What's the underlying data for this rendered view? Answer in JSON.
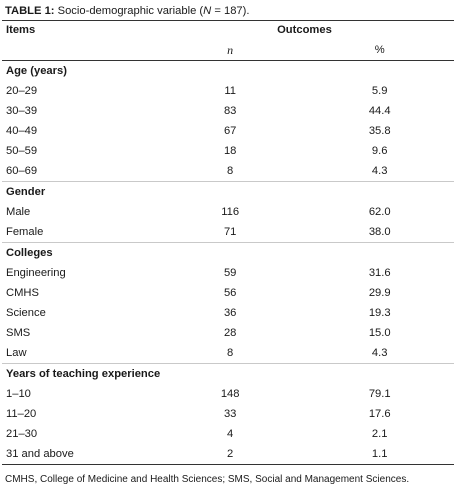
{
  "caption": {
    "label": "TABLE 1:",
    "text_before": " Socio-demographic variable (",
    "n_symbol": "N",
    "text_after": " = 187)."
  },
  "header": {
    "items": "Items",
    "outcomes": "Outcomes",
    "n": "n",
    "percent": "%"
  },
  "sections": [
    {
      "title": "Age (years)",
      "rows": [
        {
          "item": "20–29",
          "n": "11",
          "pct": "5.9"
        },
        {
          "item": "30–39",
          "n": "83",
          "pct": "44.4"
        },
        {
          "item": "40–49",
          "n": "67",
          "pct": "35.8"
        },
        {
          "item": "50–59",
          "n": "18",
          "pct": "9.6"
        },
        {
          "item": "60–69",
          "n": "8",
          "pct": "4.3"
        }
      ]
    },
    {
      "title": "Gender",
      "rows": [
        {
          "item": "Male",
          "n": "116",
          "pct": "62.0"
        },
        {
          "item": "Female",
          "n": "71",
          "pct": "38.0"
        }
      ]
    },
    {
      "title": "Colleges",
      "rows": [
        {
          "item": "Engineering",
          "n": "59",
          "pct": "31.6"
        },
        {
          "item": "CMHS",
          "n": "56",
          "pct": "29.9"
        },
        {
          "item": "Science",
          "n": "36",
          "pct": "19.3"
        },
        {
          "item": "SMS",
          "n": "28",
          "pct": "15.0"
        },
        {
          "item": "Law",
          "n": "8",
          "pct": "4.3"
        }
      ]
    },
    {
      "title": "Years of teaching experience",
      "rows": [
        {
          "item": "1–10",
          "n": "148",
          "pct": "79.1"
        },
        {
          "item": "11–20",
          "n": "33",
          "pct": "17.6"
        },
        {
          "item": "21–30",
          "n": "4",
          "pct": "2.1"
        },
        {
          "item": "31 and above",
          "n": "2",
          "pct": "1.1"
        }
      ]
    }
  ],
  "footnote": "CMHS, College of Medicine and Health Sciences; SMS, Social and Management Sciences."
}
